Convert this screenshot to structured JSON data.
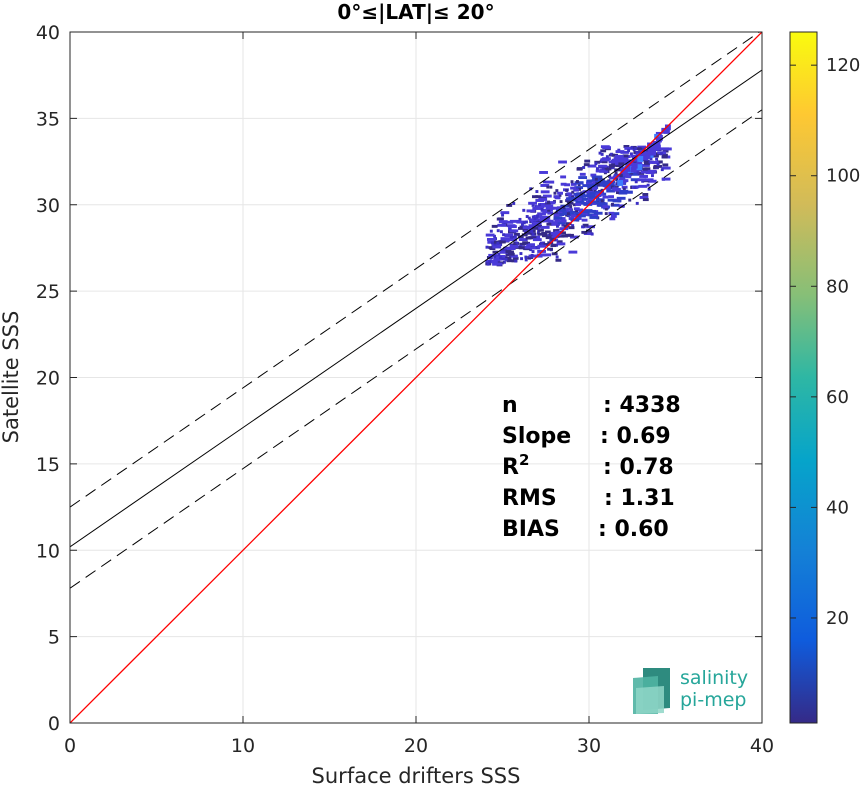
{
  "chart_data": {
    "type": "scatter",
    "title": "0°≤|LAT|≤ 20°",
    "xlabel": "Surface drifters SSS",
    "ylabel": "Satellite SSS",
    "xlim": [
      0,
      40
    ],
    "ylim": [
      0,
      40
    ],
    "xticks": [
      "0",
      "10",
      "20",
      "30",
      "40"
    ],
    "yticks": [
      "0",
      "5",
      "10",
      "15",
      "20",
      "25",
      "30",
      "35",
      "40"
    ],
    "grid": true,
    "reference_lines": {
      "one_to_one": {
        "color": "#ff0000",
        "x": [
          0,
          40
        ],
        "y": [
          0,
          40
        ]
      },
      "fit": {
        "color": "#000000",
        "style": "solid",
        "x": [
          0,
          40
        ],
        "y": [
          10.2,
          37.8
        ]
      },
      "fit_upper": {
        "color": "#000000",
        "style": "dashed",
        "x": [
          0,
          40
        ],
        "y": [
          12.5,
          40.1
        ]
      },
      "fit_lower": {
        "color": "#000000",
        "style": "dashed",
        "x": [
          0,
          40
        ],
        "y": [
          7.8,
          35.5
        ]
      }
    },
    "density_cloud": {
      "x_range": [
        23.5,
        34.5
      ],
      "y_range": [
        26.5,
        34.5
      ],
      "dominant_color": "#3b2fc4"
    },
    "stats": [
      {
        "label": "n",
        "value": ": 4338"
      },
      {
        "label": "Slope",
        "value": ": 0.69"
      },
      {
        "label": "R²",
        "value": ": 0.78"
      },
      {
        "label": "RMS",
        "value": ": 1.31"
      },
      {
        "label": "BIAS",
        "value": ": 0.60"
      }
    ],
    "colorbar": {
      "min": 1,
      "max": 126,
      "ticks": [
        "20",
        "40",
        "60",
        "80",
        "100",
        "120"
      ],
      "colormap": "parula"
    }
  },
  "logo": {
    "line1": "salinity",
    "line2": "pi-mep"
  }
}
